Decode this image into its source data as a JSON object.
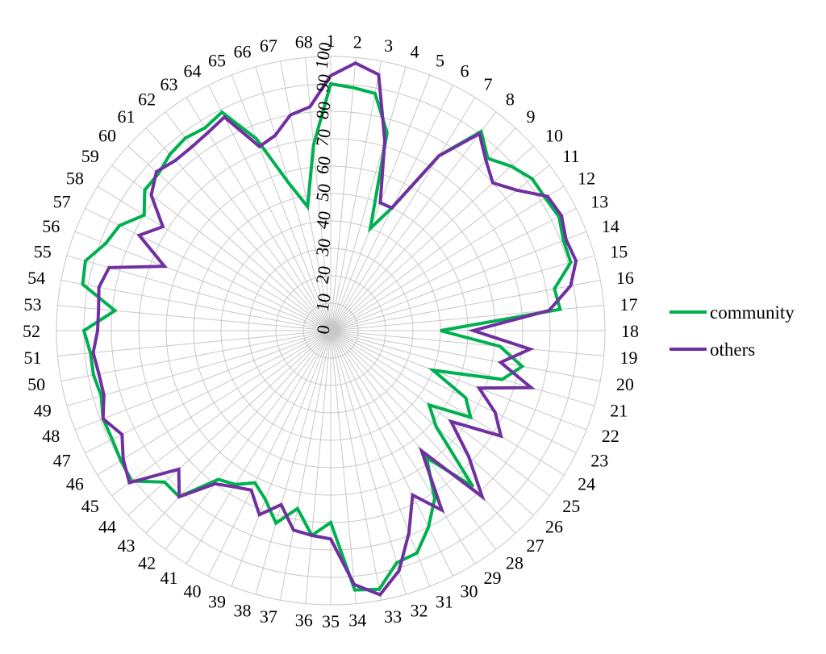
{
  "chart_data": {
    "type": "radar",
    "title": "",
    "categories": [
      "1",
      "2",
      "3",
      "4",
      "5",
      "6",
      "7",
      "8",
      "9",
      "10",
      "11",
      "12",
      "13",
      "14",
      "15",
      "16",
      "17",
      "18",
      "19",
      "20",
      "21",
      "22",
      "23",
      "24",
      "25",
      "26",
      "27",
      "28",
      "29",
      "30",
      "31",
      "32",
      "33",
      "34",
      "35",
      "36",
      "37",
      "38",
      "39",
      "40",
      "41",
      "42",
      "43",
      "44",
      "45",
      "46",
      "47",
      "48",
      "49",
      "50",
      "51",
      "52",
      "53",
      "54",
      "55",
      "56",
      "57",
      "58",
      "59",
      "60",
      "61",
      "62",
      "63",
      "64",
      "65",
      "66",
      "67",
      "68"
    ],
    "rlim": [
      0,
      100
    ],
    "rticks": [
      "0",
      "10",
      "20",
      "30",
      "40",
      "50",
      "60",
      "70",
      "80",
      "90",
      "100"
    ],
    "grid": true,
    "legend_position": "right",
    "series": [
      {
        "name": "community",
        "color": "#00b050",
        "values": [
          90,
          89,
          88,
          75,
          40,
          50,
          75,
          91,
          85,
          89,
          92,
          92,
          93,
          91,
          91,
          83,
          84,
          40,
          62,
          71,
          65,
          40,
          55,
          60,
          45,
          52,
          77,
          58,
          72,
          80,
          87,
          88,
          96,
          95,
          70,
          75,
          66,
          73,
          66,
          62,
          66,
          68,
          82,
          82,
          91,
          90,
          89,
          89,
          87,
          88,
          88,
          90,
          79,
          92,
          93,
          88,
          86,
          80,
          85,
          85,
          87,
          88,
          87,
          89,
          75,
          56,
          46,
          68
        ],
        "color_name": "green"
      },
      {
        "name": "others",
        "color": "#7030a0",
        "values": [
          93,
          98,
          95,
          72,
          50,
          50,
          75,
          90,
          84,
          80,
          85,
          93,
          94,
          92,
          93,
          89,
          80,
          52,
          73,
          63,
          76,
          58,
          67,
          73,
          55,
          68,
          82,
          55,
          77,
          67,
          79,
          91,
          98,
          93,
          76,
          75,
          74,
          66,
          72,
          65,
          67,
          70,
          82,
          75,
          92,
          89,
          85,
          89,
          86,
          86,
          87,
          85,
          85,
          86,
          84,
          65,
          78,
          72,
          82,
          86,
          84,
          84,
          85,
          87,
          72,
          74,
          80,
          82
        ],
        "color_name": "purple"
      }
    ]
  }
}
